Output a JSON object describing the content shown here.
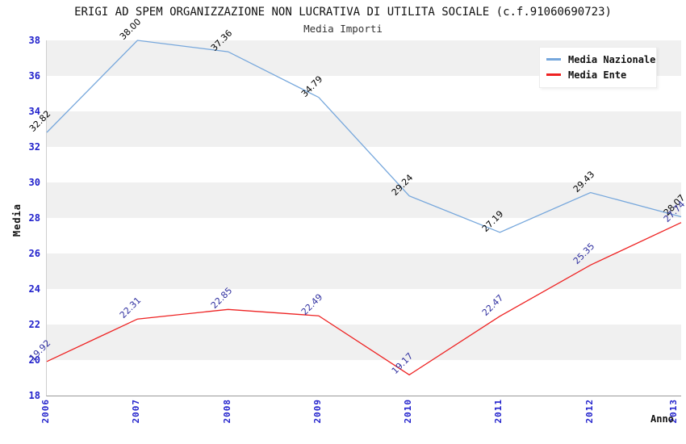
{
  "title": "ERIGI AD SPEM ORGANIZZAZIONE NON LUCRATIVA DI UTILITA SOCIALE (c.f.91060690723)",
  "subtitle": "Media Importi",
  "axes": {
    "y_title": "Media",
    "x_title": "Anno",
    "y_ticks": [
      38,
      36,
      34,
      32,
      30,
      28,
      26,
      24,
      22,
      20,
      18
    ],
    "x_ticks": [
      "2006",
      "2007",
      "2008",
      "2009",
      "2010",
      "2011",
      "2012",
      "2013"
    ]
  },
  "legend": {
    "items": [
      {
        "label": "Media Nazionale",
        "color": "#76a7dc"
      },
      {
        "label": "Media Ente",
        "color": "#ee2222"
      }
    ]
  },
  "colors": {
    "band_gray": "#f0f0f0",
    "tick_blue": "#2222cc",
    "nazionale_line": "#76a7dc",
    "ente_line": "#ee2222",
    "nazionale_label": "#000000",
    "ente_label": "#3030a0"
  },
  "chart_data": {
    "type": "line",
    "title": "Media Importi",
    "xlabel": "Anno",
    "ylabel": "Media",
    "x": [
      "2006",
      "2007",
      "2008",
      "2009",
      "2010",
      "2011",
      "2012",
      "2013"
    ],
    "ylim": [
      18,
      38
    ],
    "grid": "horizontal-bands",
    "legend_position": "top-right",
    "series": [
      {
        "name": "Media Nazionale",
        "color": "#76a7dc",
        "label_color": "#000000",
        "values": [
          32.82,
          38.0,
          37.36,
          34.79,
          29.24,
          27.19,
          29.43,
          28.07
        ]
      },
      {
        "name": "Media Ente",
        "color": "#ee2222",
        "label_color": "#3030a0",
        "values": [
          19.92,
          22.31,
          22.85,
          22.49,
          19.17,
          22.47,
          25.35,
          27.74
        ]
      }
    ]
  }
}
